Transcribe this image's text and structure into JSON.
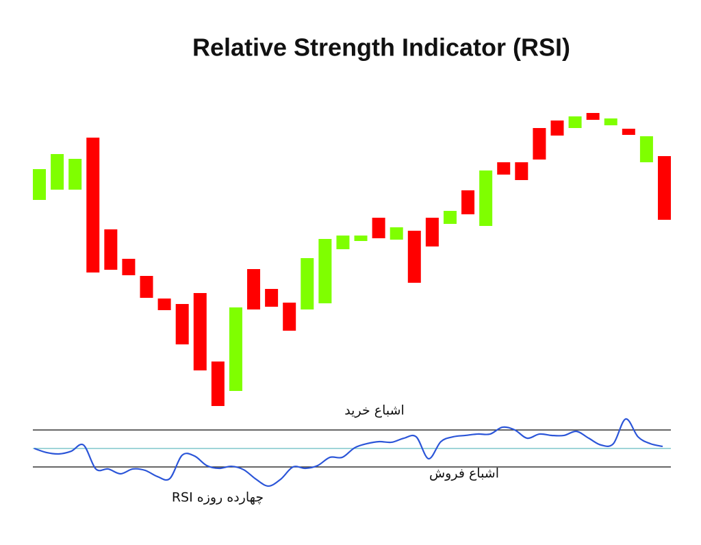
{
  "chart_data": [
    {
      "type": "candlestick",
      "title": "Relative Strength Indicator (RSI)",
      "open": [
        308,
        323,
        323,
        399,
        265,
        222,
        197,
        164,
        156,
        172,
        72,
        29,
        207,
        178,
        158,
        148,
        157,
        236,
        248,
        282,
        250,
        263,
        282,
        273,
        322,
        270,
        363,
        363,
        413,
        424,
        413,
        435,
        417,
        412,
        363,
        372
      ],
      "close": [
        353,
        375,
        368,
        202,
        206,
        198,
        165,
        147,
        97,
        59,
        7,
        151,
        148,
        152,
        117,
        223,
        251,
        256,
        256,
        252,
        268,
        187,
        240,
        292,
        287,
        351,
        345,
        337,
        367,
        402,
        430,
        425,
        427,
        403,
        401,
        279
      ],
      "up_color": "#7fff00",
      "down_color": "#ff0000",
      "ylim": [
        0,
        450
      ]
    },
    {
      "type": "line",
      "series": [
        {
          "name": "RSI چهارده روزه",
          "color": "#2b55d8",
          "values": [
            50,
            45.6,
            44.1,
            47,
            53.7,
            27.8,
            27.8,
            22.6,
            27.8,
            26.3,
            19.6,
            17.4,
            42.6,
            41.9,
            31.5,
            28.5,
            30.7,
            27,
            16.7,
            9.3,
            16.7,
            30,
            28.5,
            31.5,
            40.4,
            40.4,
            50.7,
            55.2,
            57.4,
            56.7,
            61.1,
            62.6,
            38.9,
            57.4,
            62.6,
            64.1,
            65.6,
            65.6,
            73,
            70,
            61.1,
            65.6,
            64.1,
            64.1,
            68.5,
            61.1,
            53.7,
            55.2,
            81.9,
            62.6,
            55.2,
            52.2
          ]
        }
      ],
      "reference_lines": [
        {
          "value": 70,
          "label": "اشباع خرید",
          "color": "#333333"
        },
        {
          "value": 50,
          "color": "#7fc6cc"
        },
        {
          "value": 30,
          "label": "اشباع فروش",
          "color": "#333333"
        }
      ]
    }
  ]
}
